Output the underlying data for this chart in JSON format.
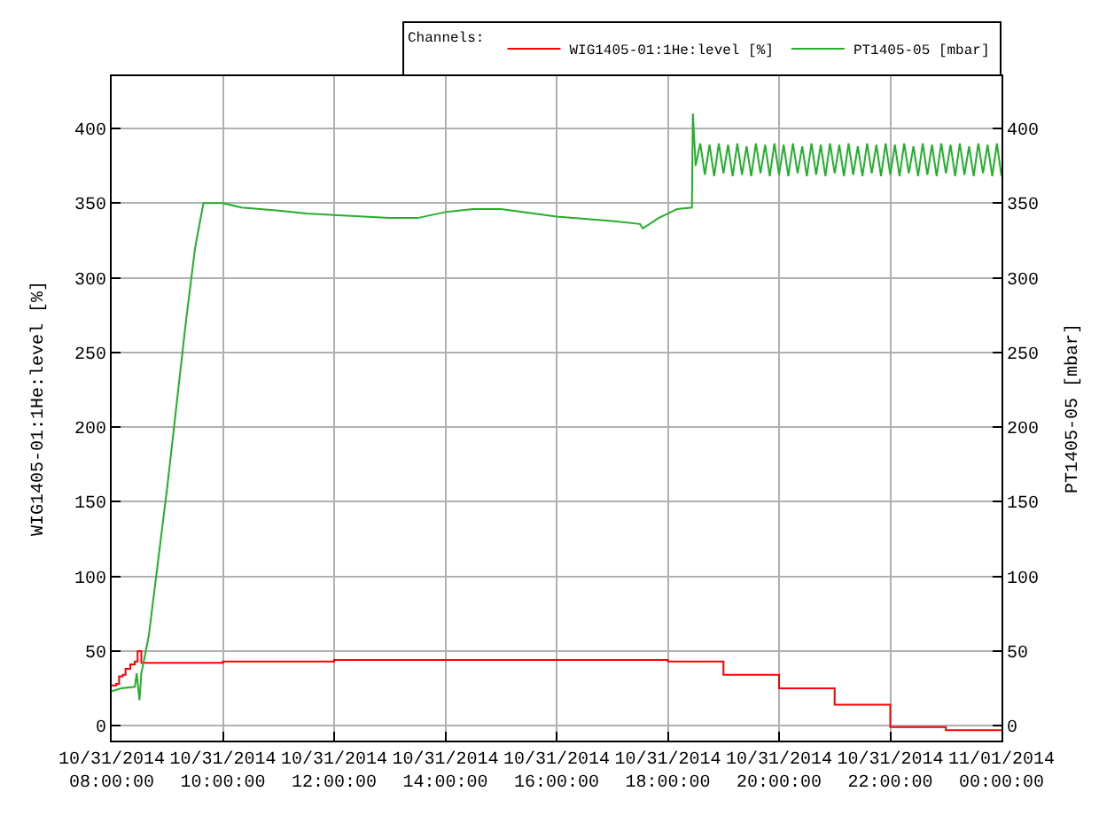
{
  "chart_data": {
    "type": "line",
    "ylabel": "WIG1405-01:1He:level [%]",
    "y2label": "PT1405-05 [mbar]",
    "legend_title": "Channels:",
    "xlim": [
      "2014-10-31T08:00",
      "2014-11-01T00:00"
    ],
    "xticks": [
      {
        "value": "2014-10-31T08:00",
        "label": "10/31/2014\n08:00:00"
      },
      {
        "value": "2014-10-31T10:00",
        "label": "10/31/2014\n10:00:00"
      },
      {
        "value": "2014-10-31T12:00",
        "label": "10/31/2014\n12:00:00"
      },
      {
        "value": "2014-10-31T14:00",
        "label": "10/31/2014\n14:00:00"
      },
      {
        "value": "2014-10-31T16:00",
        "label": "10/31/2014\n16:00:00"
      },
      {
        "value": "2014-10-31T18:00",
        "label": "10/31/2014\n18:00:00"
      },
      {
        "value": "2014-10-31T20:00",
        "label": "10/31/2014\n20:00:00"
      },
      {
        "value": "2014-10-31T22:00",
        "label": "10/31/2014\n22:00:00"
      },
      {
        "value": "2014-11-01T00:00",
        "label": "11/01/2014\n00:00:00"
      }
    ],
    "ylim": [
      -10,
      435
    ],
    "yticks": [
      0,
      50,
      100,
      150,
      200,
      250,
      300,
      350,
      400
    ],
    "y2lim": [
      -10,
      435
    ],
    "y2ticks": [
      0,
      50,
      100,
      150,
      200,
      250,
      300,
      350,
      400
    ],
    "grid": true,
    "legend": "top right",
    "series": [
      {
        "name": "WIG1405-01:1He:level [%]",
        "type": "step",
        "color": "#ff0000",
        "x": [
          "2014-10-31T08:00",
          "2014-10-31T08:05",
          "2014-10-31T08:08",
          "2014-10-31T08:12",
          "2014-10-31T08:15",
          "2014-10-31T08:20",
          "2014-10-31T08:25",
          "2014-10-31T08:28",
          "2014-10-31T08:32",
          "2014-10-31T10:00",
          "2014-10-31T12:00",
          "2014-10-31T18:00",
          "2014-10-31T19:00",
          "2014-10-31T20:00",
          "2014-10-31T21:00",
          "2014-10-31T22:00",
          "2014-10-31T23:00",
          "2014-11-01T00:00"
        ],
        "values": [
          27,
          28,
          33,
          34,
          38,
          41,
          43,
          50,
          42,
          43,
          44,
          43,
          34,
          25,
          14,
          -1,
          -3,
          -3
        ]
      },
      {
        "name": "PT1405-05 [mbar]",
        "type": "line",
        "axis": "y2",
        "color": "#22b02a",
        "x": [
          "2014-10-31T08:00",
          "2014-10-31T08:10",
          "2014-10-31T08:25",
          "2014-10-31T08:27",
          "2014-10-31T08:30",
          "2014-10-31T08:32",
          "2014-10-31T08:40",
          "2014-10-31T08:50",
          "2014-10-31T09:00",
          "2014-10-31T09:10",
          "2014-10-31T09:20",
          "2014-10-31T09:30",
          "2014-10-31T09:39",
          "2014-10-31T10:00",
          "2014-10-31T10:20",
          "2014-10-31T10:40",
          "2014-10-31T11:00",
          "2014-10-31T11:30",
          "2014-10-31T12:00",
          "2014-10-31T13:00",
          "2014-10-31T13:30",
          "2014-10-31T14:00",
          "2014-10-31T14:30",
          "2014-10-31T15:00",
          "2014-10-31T16:00",
          "2014-10-31T17:00",
          "2014-10-31T17:30",
          "2014-10-31T17:33",
          "2014-10-31T17:50",
          "2014-10-31T18:00",
          "2014-10-31T18:10",
          "2014-10-31T18:26",
          "2014-10-31T18:27",
          "2014-10-31T18:30",
          "2014-10-31T18:35",
          "2014-10-31T18:40",
          "2014-10-31T18:45",
          "2014-10-31T18:50",
          "2014-10-31T18:55",
          "2014-10-31T19:00",
          "2014-10-31T19:05",
          "2014-10-31T19:10",
          "2014-10-31T19:15",
          "2014-10-31T19:20",
          "2014-10-31T19:25",
          "2014-10-31T19:30",
          "2014-10-31T19:35",
          "2014-10-31T19:40",
          "2014-10-31T19:45",
          "2014-10-31T19:50",
          "2014-10-31T19:55",
          "2014-10-31T20:00",
          "2014-10-31T20:05",
          "2014-10-31T20:10",
          "2014-10-31T20:15",
          "2014-10-31T20:20",
          "2014-10-31T20:25",
          "2014-10-31T20:30",
          "2014-10-31T20:35",
          "2014-10-31T20:40",
          "2014-10-31T20:45",
          "2014-10-31T20:50",
          "2014-10-31T20:55",
          "2014-10-31T21:00",
          "2014-10-31T21:05",
          "2014-10-31T21:10",
          "2014-10-31T21:15",
          "2014-10-31T21:20",
          "2014-10-31T21:25",
          "2014-10-31T21:30",
          "2014-10-31T21:35",
          "2014-10-31T21:40",
          "2014-10-31T21:45",
          "2014-10-31T21:50",
          "2014-10-31T21:55",
          "2014-10-31T22:00",
          "2014-10-31T22:05",
          "2014-10-31T22:10",
          "2014-10-31T22:15",
          "2014-10-31T22:20",
          "2014-10-31T22:25",
          "2014-10-31T22:30",
          "2014-10-31T22:35",
          "2014-10-31T22:40",
          "2014-10-31T22:45",
          "2014-10-31T22:50",
          "2014-10-31T22:55",
          "2014-10-31T23:00",
          "2014-10-31T23:05",
          "2014-10-31T23:10",
          "2014-10-31T23:15",
          "2014-10-31T23:20",
          "2014-10-31T23:25",
          "2014-10-31T23:30",
          "2014-10-31T23:35",
          "2014-10-31T23:40",
          "2014-10-31T23:45",
          "2014-10-31T23:50",
          "2014-10-31T23:55",
          "2014-11-01T00:00"
        ],
        "values": [
          23,
          25,
          26,
          35,
          17,
          35,
          60,
          110,
          160,
          215,
          270,
          320,
          350,
          350,
          347,
          346,
          345,
          343,
          342,
          340,
          340,
          344,
          346,
          346,
          341,
          338,
          336,
          333,
          340,
          343,
          346,
          347,
          410,
          375,
          390,
          369,
          389,
          368,
          390,
          370,
          389,
          368,
          390,
          369,
          388,
          368,
          390,
          370,
          389,
          368,
          390,
          369,
          389,
          368,
          390,
          370,
          388,
          368,
          390,
          369,
          389,
          368,
          390,
          370,
          389,
          368,
          390,
          369,
          388,
          368,
          390,
          370,
          389,
          368,
          390,
          369,
          389,
          368,
          390,
          370,
          388,
          368,
          390,
          369,
          389,
          368,
          390,
          370,
          389,
          368,
          390,
          369,
          388,
          368,
          390,
          370,
          389,
          368,
          390,
          368
        ]
      }
    ]
  }
}
